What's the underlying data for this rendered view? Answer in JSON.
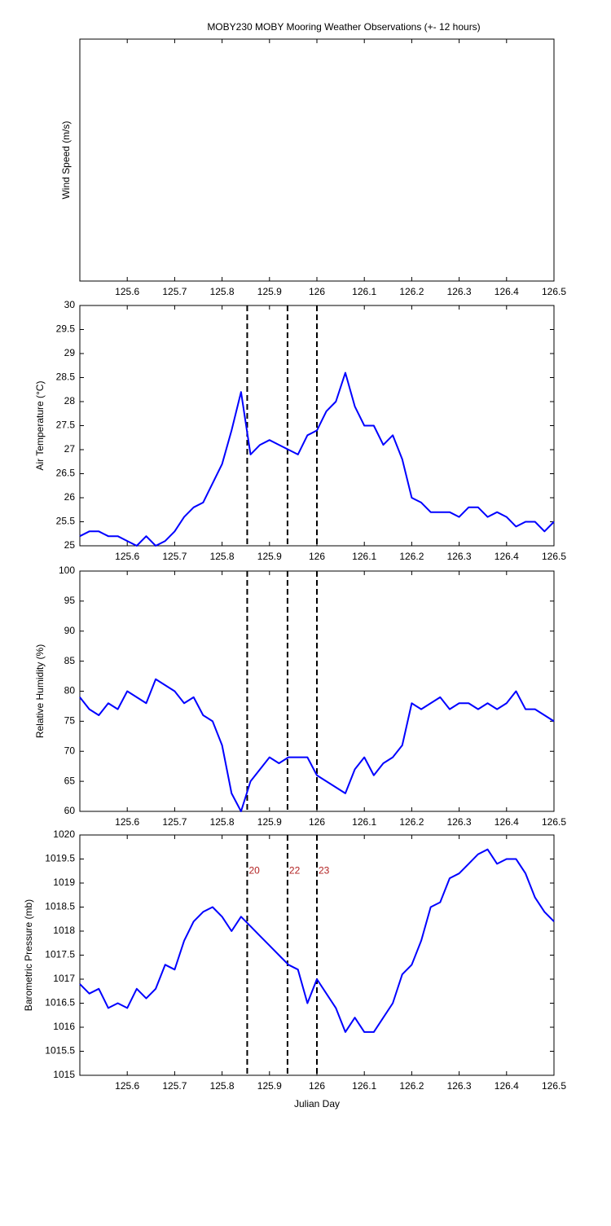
{
  "chart_data": [
    {
      "type": "line",
      "title": "MOBY230 MOBY Mooring Weather Observations (+- 12 hours)",
      "ylabel": "Wind Speed (m/s)",
      "xlim": [
        125.5,
        126.5
      ],
      "xticks": [
        125.6,
        125.7,
        125.8,
        125.9,
        126,
        126.1,
        126.2,
        126.3,
        126.4,
        126.5
      ],
      "series": []
    },
    {
      "type": "line",
      "ylabel": "Air Temperature (°C)",
      "xlim": [
        125.5,
        126.5
      ],
      "xticks": [
        125.6,
        125.7,
        125.8,
        125.9,
        126,
        126.1,
        126.2,
        126.3,
        126.4,
        126.5
      ],
      "ylim": [
        25,
        30
      ],
      "yticks": [
        25,
        25.5,
        26,
        26.5,
        27,
        27.5,
        28,
        28.5,
        29,
        29.5,
        30
      ],
      "vlines": [
        {
          "x": 125.853,
          "color": "#000000"
        },
        {
          "x": 125.938,
          "color": "#000000"
        },
        {
          "x": 126.0,
          "color": "#000000"
        }
      ],
      "x": [
        125.5,
        125.52,
        125.54,
        125.56,
        125.58,
        125.6,
        125.62,
        125.64,
        125.66,
        125.68,
        125.7,
        125.72,
        125.74,
        125.76,
        125.78,
        125.8,
        125.82,
        125.84,
        125.86,
        125.88,
        125.9,
        125.92,
        125.94,
        125.96,
        125.98,
        126.0,
        126.02,
        126.04,
        126.06,
        126.08,
        126.1,
        126.12,
        126.14,
        126.16,
        126.18,
        126.2,
        126.22,
        126.24,
        126.26,
        126.28,
        126.3,
        126.32,
        126.34,
        126.36,
        126.38,
        126.4,
        126.42,
        126.44,
        126.46,
        126.48,
        126.5
      ],
      "series": [
        {
          "color": "#0000ff",
          "values": [
            25.2,
            25.3,
            25.3,
            25.2,
            25.2,
            25.1,
            25.0,
            25.2,
            25.0,
            25.1,
            25.3,
            25.6,
            25.8,
            25.9,
            26.3,
            26.7,
            27.4,
            28.2,
            26.9,
            27.1,
            27.2,
            27.1,
            27.0,
            26.9,
            27.3,
            27.4,
            27.8,
            28.0,
            28.6,
            27.9,
            27.5,
            27.5,
            27.1,
            27.3,
            26.8,
            26.0,
            25.9,
            25.7,
            25.7,
            25.7,
            25.6,
            25.8,
            25.8,
            25.6,
            25.7,
            25.6,
            25.4,
            25.5,
            25.5,
            25.3,
            25.5
          ]
        }
      ]
    },
    {
      "type": "line",
      "ylabel": "Relative Humidity (%)",
      "xlim": [
        125.5,
        126.5
      ],
      "xticks": [
        125.6,
        125.7,
        125.8,
        125.9,
        126,
        126.1,
        126.2,
        126.3,
        126.4,
        126.5
      ],
      "ylim": [
        60,
        100
      ],
      "yticks": [
        60,
        65,
        70,
        75,
        80,
        85,
        90,
        95,
        100
      ],
      "vlines": [
        {
          "x": 125.853,
          "color": "#000000"
        },
        {
          "x": 125.938,
          "color": "#000000"
        },
        {
          "x": 126.0,
          "color": "#000000"
        }
      ],
      "x": [
        125.5,
        125.52,
        125.54,
        125.56,
        125.58,
        125.6,
        125.62,
        125.64,
        125.66,
        125.68,
        125.7,
        125.72,
        125.74,
        125.76,
        125.78,
        125.8,
        125.82,
        125.84,
        125.86,
        125.88,
        125.9,
        125.92,
        125.94,
        125.96,
        125.98,
        126.0,
        126.02,
        126.04,
        126.06,
        126.08,
        126.1,
        126.12,
        126.14,
        126.16,
        126.18,
        126.2,
        126.22,
        126.24,
        126.26,
        126.28,
        126.3,
        126.32,
        126.34,
        126.36,
        126.38,
        126.4,
        126.42,
        126.44,
        126.46,
        126.48,
        126.5
      ],
      "series": [
        {
          "color": "#0000ff",
          "values": [
            79,
            77,
            76,
            78,
            77,
            80,
            79,
            78,
            82,
            81,
            80,
            78,
            79,
            76,
            75,
            71,
            63,
            60,
            65,
            67,
            69,
            68,
            69,
            69,
            69,
            66,
            65,
            64,
            63,
            67,
            69,
            66,
            68,
            69,
            71,
            78,
            77,
            78,
            79,
            77,
            78,
            78,
            77,
            78,
            77,
            78,
            80,
            77,
            77,
            76,
            75
          ]
        }
      ]
    },
    {
      "type": "line",
      "ylabel": "Barometric Pressure (mb)",
      "xlabel": "Julian Day",
      "xlim": [
        125.5,
        126.5
      ],
      "xticks": [
        125.6,
        125.7,
        125.8,
        125.9,
        126,
        126.1,
        126.2,
        126.3,
        126.4,
        126.5
      ],
      "ylim": [
        1015,
        1020
      ],
      "yticks": [
        1015,
        1015.5,
        1016,
        1016.5,
        1017,
        1017.5,
        1018,
        1018.5,
        1019,
        1019.5,
        1020
      ],
      "vlines": [
        {
          "x": 125.853,
          "color": "#000000",
          "label": "20",
          "label_color": "#b22222"
        },
        {
          "x": 125.938,
          "color": "#000000",
          "label": "22",
          "label_color": "#b22222"
        },
        {
          "x": 126.0,
          "color": "#000000",
          "label": "23",
          "label_color": "#b22222"
        }
      ],
      "x": [
        125.5,
        125.52,
        125.54,
        125.56,
        125.58,
        125.6,
        125.62,
        125.64,
        125.66,
        125.68,
        125.7,
        125.72,
        125.74,
        125.76,
        125.78,
        125.8,
        125.82,
        125.84,
        125.86,
        125.88,
        125.9,
        125.92,
        125.94,
        125.96,
        125.98,
        126.0,
        126.02,
        126.04,
        126.06,
        126.08,
        126.1,
        126.12,
        126.14,
        126.16,
        126.18,
        126.2,
        126.22,
        126.24,
        126.26,
        126.28,
        126.3,
        126.32,
        126.34,
        126.36,
        126.38,
        126.4,
        126.42,
        126.44,
        126.46,
        126.48,
        126.5
      ],
      "series": [
        {
          "color": "#0000ff",
          "values": [
            1016.9,
            1016.7,
            1016.8,
            1016.4,
            1016.5,
            1016.4,
            1016.8,
            1016.6,
            1016.8,
            1017.3,
            1017.2,
            1017.8,
            1018.2,
            1018.4,
            1018.5,
            1018.3,
            1018.0,
            1018.3,
            1018.1,
            1017.9,
            1017.7,
            1017.5,
            1017.3,
            1017.2,
            1016.5,
            1017.0,
            1016.7,
            1016.4,
            1015.9,
            1016.2,
            1015.9,
            1015.9,
            1016.2,
            1016.5,
            1017.1,
            1017.3,
            1017.8,
            1018.5,
            1018.6,
            1019.1,
            1019.2,
            1019.4,
            1019.6,
            1019.7,
            1019.4,
            1019.5,
            1019.5,
            1019.2,
            1018.7,
            1018.4,
            1018.2
          ]
        }
      ]
    }
  ]
}
